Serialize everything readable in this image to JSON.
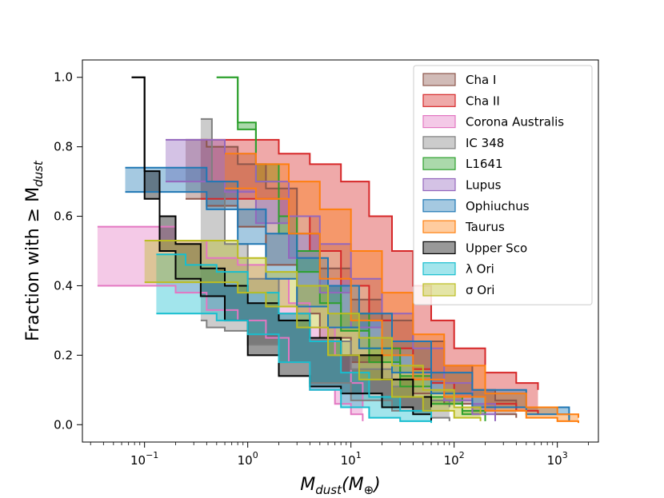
{
  "chart_data": {
    "type": "area",
    "title": "",
    "xlabel_main": "M",
    "xlabel_sub": "dust",
    "xlabel_paren": "(M",
    "xlabel_paren_sub": "⊕",
    "xlabel_close": ")",
    "ylabel_text": "Fraction with  ≥ M",
    "ylabel_sub": "dust",
    "xscale": "log",
    "xlim": [
      0.025,
      2500
    ],
    "ylim": [
      -0.05,
      1.05
    ],
    "xticks": [
      {
        "value": 0.1,
        "base": "10",
        "exp": "−1"
      },
      {
        "value": 1,
        "base": "10",
        "exp": "0"
      },
      {
        "value": 10,
        "base": "10",
        "exp": "1"
      },
      {
        "value": 100,
        "base": "10",
        "exp": "2"
      },
      {
        "value": 1000,
        "base": "10",
        "exp": "3"
      }
    ],
    "yticks": [
      "0.0",
      "0.2",
      "0.4",
      "0.6",
      "0.8",
      "1.0"
    ],
    "ytick_values": [
      0.0,
      0.2,
      0.4,
      0.6,
      0.8,
      1.0
    ],
    "legend_position": "upper right",
    "series": [
      {
        "name": "Cha I",
        "color": "#8c564b",
        "upper": [
          [
            0.25,
            0.82
          ],
          [
            0.4,
            0.8
          ],
          [
            0.8,
            0.75
          ],
          [
            1.5,
            0.68
          ],
          [
            3,
            0.55
          ],
          [
            5,
            0.45
          ],
          [
            10,
            0.36
          ],
          [
            20,
            0.3
          ],
          [
            40,
            0.24
          ],
          [
            80,
            0.17
          ],
          [
            150,
            0.1
          ],
          [
            250,
            0.07
          ],
          [
            400,
            0.04
          ]
        ],
        "lower": [
          [
            0.25,
            0.65
          ],
          [
            0.4,
            0.63
          ],
          [
            0.8,
            0.57
          ],
          [
            1.5,
            0.46
          ],
          [
            3,
            0.32
          ],
          [
            5,
            0.25
          ],
          [
            10,
            0.18
          ],
          [
            20,
            0.13
          ],
          [
            40,
            0.09
          ],
          [
            80,
            0.06
          ],
          [
            150,
            0.04
          ],
          [
            250,
            0.03
          ],
          [
            400,
            0.02
          ]
        ]
      },
      {
        "name": "Cha II",
        "color": "#d62728",
        "upper": [
          [
            0.35,
            0.82
          ],
          [
            1.0,
            0.82
          ],
          [
            2,
            0.78
          ],
          [
            4,
            0.75
          ],
          [
            8,
            0.7
          ],
          [
            15,
            0.6
          ],
          [
            25,
            0.5
          ],
          [
            40,
            0.4
          ],
          [
            60,
            0.3
          ],
          [
            100,
            0.22
          ],
          [
            200,
            0.15
          ],
          [
            400,
            0.12
          ],
          [
            650,
            0.1
          ]
        ],
        "lower": [
          [
            0.35,
            0.65
          ],
          [
            1.0,
            0.65
          ],
          [
            2,
            0.6
          ],
          [
            4,
            0.5
          ],
          [
            8,
            0.4
          ],
          [
            15,
            0.3
          ],
          [
            25,
            0.22
          ],
          [
            40,
            0.16
          ],
          [
            60,
            0.12
          ],
          [
            100,
            0.08
          ],
          [
            200,
            0.06
          ],
          [
            400,
            0.04
          ],
          [
            650,
            0.03
          ]
        ]
      },
      {
        "name": "Corona Australis",
        "color": "#e377c2",
        "upper": [
          [
            0.035,
            0.57
          ],
          [
            0.12,
            0.57
          ],
          [
            0.2,
            0.53
          ],
          [
            0.4,
            0.48
          ],
          [
            0.8,
            0.46
          ],
          [
            1.5,
            0.42
          ],
          [
            2.5,
            0.35
          ],
          [
            4,
            0.28
          ],
          [
            7,
            0.2
          ],
          [
            10,
            0.12
          ],
          [
            13,
            0.05
          ]
        ],
        "lower": [
          [
            0.035,
            0.4
          ],
          [
            0.12,
            0.4
          ],
          [
            0.2,
            0.38
          ],
          [
            0.4,
            0.33
          ],
          [
            0.8,
            0.3
          ],
          [
            1.5,
            0.25
          ],
          [
            2.5,
            0.18
          ],
          [
            4,
            0.1
          ],
          [
            7,
            0.06
          ],
          [
            10,
            0.03
          ],
          [
            13,
            0.01
          ]
        ]
      },
      {
        "name": "IC 348",
        "color": "#7f7f7f",
        "upper": [
          [
            0.35,
            0.88
          ],
          [
            0.4,
            0.88
          ],
          [
            0.45,
            0.7
          ],
          [
            0.6,
            0.52
          ],
          [
            1,
            0.42
          ],
          [
            2,
            0.32
          ],
          [
            4,
            0.24
          ],
          [
            10,
            0.16
          ],
          [
            25,
            0.11
          ],
          [
            60,
            0.07
          ],
          [
            90,
            0.05
          ]
        ],
        "lower": [
          [
            0.35,
            0.3
          ],
          [
            0.4,
            0.28
          ],
          [
            0.45,
            0.28
          ],
          [
            0.6,
            0.27
          ],
          [
            1,
            0.23
          ],
          [
            2,
            0.18
          ],
          [
            4,
            0.12
          ],
          [
            10,
            0.07
          ],
          [
            25,
            0.04
          ],
          [
            60,
            0.02
          ],
          [
            90,
            0.01
          ]
        ]
      },
      {
        "name": "L1641",
        "color": "#2ca02c",
        "upper": [
          [
            0.5,
            1.0
          ],
          [
            0.8,
            0.87
          ],
          [
            1.2,
            0.75
          ],
          [
            2,
            0.6
          ],
          [
            3,
            0.5
          ],
          [
            5,
            0.4
          ],
          [
            8,
            0.32
          ],
          [
            15,
            0.22
          ],
          [
            30,
            0.14
          ],
          [
            60,
            0.08
          ],
          [
            120,
            0.04
          ],
          [
            200,
            0.02
          ]
        ],
        "lower": [
          [
            0.5,
            1.0
          ],
          [
            0.8,
            0.85
          ],
          [
            1.2,
            0.7
          ],
          [
            2,
            0.55
          ],
          [
            3,
            0.44
          ],
          [
            5,
            0.35
          ],
          [
            8,
            0.27
          ],
          [
            15,
            0.18
          ],
          [
            30,
            0.11
          ],
          [
            60,
            0.06
          ],
          [
            120,
            0.03
          ],
          [
            200,
            0.01
          ]
        ]
      },
      {
        "name": "Lupus",
        "color": "#9467bd",
        "upper": [
          [
            0.16,
            0.82
          ],
          [
            0.3,
            0.82
          ],
          [
            0.6,
            0.78
          ],
          [
            1.2,
            0.7
          ],
          [
            2.5,
            0.6
          ],
          [
            5,
            0.52
          ],
          [
            10,
            0.42
          ],
          [
            20,
            0.32
          ],
          [
            40,
            0.22
          ],
          [
            80,
            0.12
          ],
          [
            150,
            0.06
          ],
          [
            250,
            0.02
          ]
        ],
        "lower": [
          [
            0.16,
            0.7
          ],
          [
            0.3,
            0.7
          ],
          [
            0.6,
            0.67
          ],
          [
            1.2,
            0.58
          ],
          [
            2.5,
            0.48
          ],
          [
            5,
            0.38
          ],
          [
            10,
            0.28
          ],
          [
            20,
            0.2
          ],
          [
            40,
            0.13
          ],
          [
            80,
            0.07
          ],
          [
            150,
            0.03
          ],
          [
            250,
            0.01
          ]
        ]
      },
      {
        "name": "Ophiuchus",
        "color": "#1f77b4",
        "upper": [
          [
            0.065,
            0.74
          ],
          [
            0.2,
            0.74
          ],
          [
            0.4,
            0.7
          ],
          [
            0.8,
            0.62
          ],
          [
            1.5,
            0.55
          ],
          [
            3,
            0.48
          ],
          [
            6,
            0.4
          ],
          [
            12,
            0.32
          ],
          [
            25,
            0.24
          ],
          [
            60,
            0.15
          ],
          [
            150,
            0.1
          ],
          [
            500,
            0.05
          ],
          [
            1300,
            0.02
          ]
        ],
        "lower": [
          [
            0.065,
            0.67
          ],
          [
            0.2,
            0.67
          ],
          [
            0.4,
            0.62
          ],
          [
            0.8,
            0.52
          ],
          [
            1.5,
            0.42
          ],
          [
            3,
            0.34
          ],
          [
            6,
            0.28
          ],
          [
            12,
            0.22
          ],
          [
            25,
            0.15
          ],
          [
            60,
            0.09
          ],
          [
            150,
            0.05
          ],
          [
            500,
            0.03
          ],
          [
            1300,
            0.01
          ]
        ]
      },
      {
        "name": "Taurus",
        "color": "#ff7f0e",
        "upper": [
          [
            0.6,
            0.78
          ],
          [
            1.2,
            0.75
          ],
          [
            2.5,
            0.7
          ],
          [
            5,
            0.62
          ],
          [
            10,
            0.5
          ],
          [
            20,
            0.38
          ],
          [
            40,
            0.26
          ],
          [
            80,
            0.17
          ],
          [
            200,
            0.09
          ],
          [
            500,
            0.05
          ],
          [
            1000,
            0.03
          ],
          [
            1600,
            0.02
          ]
        ],
        "lower": [
          [
            0.6,
            0.68
          ],
          [
            1.2,
            0.65
          ],
          [
            2.5,
            0.55
          ],
          [
            5,
            0.42
          ],
          [
            10,
            0.3
          ],
          [
            20,
            0.2
          ],
          [
            40,
            0.13
          ],
          [
            80,
            0.08
          ],
          [
            200,
            0.04
          ],
          [
            500,
            0.02
          ],
          [
            1000,
            0.01
          ],
          [
            1600,
            0.005
          ]
        ]
      },
      {
        "name": "Upper Sco",
        "color": "#000000",
        "upper": [
          [
            0.075,
            1.0
          ],
          [
            0.1,
            0.73
          ],
          [
            0.14,
            0.6
          ],
          [
            0.2,
            0.52
          ],
          [
            0.35,
            0.45
          ],
          [
            0.6,
            0.4
          ],
          [
            1,
            0.35
          ],
          [
            2,
            0.3
          ],
          [
            4,
            0.25
          ],
          [
            8,
            0.2
          ],
          [
            20,
            0.13
          ],
          [
            40,
            0.08
          ],
          [
            60,
            0.05
          ]
        ],
        "lower": [
          [
            0.075,
            1.0
          ],
          [
            0.1,
            0.65
          ],
          [
            0.14,
            0.5
          ],
          [
            0.2,
            0.42
          ],
          [
            0.35,
            0.37
          ],
          [
            0.6,
            0.3
          ],
          [
            1,
            0.2
          ],
          [
            2,
            0.14
          ],
          [
            4,
            0.11
          ],
          [
            8,
            0.09
          ],
          [
            20,
            0.05
          ],
          [
            40,
            0.03
          ],
          [
            60,
            0.01
          ]
        ]
      },
      {
        "name": "λ Ori",
        "color": "#17becf",
        "upper": [
          [
            0.13,
            0.49
          ],
          [
            0.25,
            0.46
          ],
          [
            0.5,
            0.44
          ],
          [
            1,
            0.38
          ],
          [
            2,
            0.32
          ],
          [
            4,
            0.24
          ],
          [
            8,
            0.15
          ],
          [
            15,
            0.08
          ],
          [
            30,
            0.04
          ],
          [
            60,
            0.02
          ]
        ],
        "lower": [
          [
            0.13,
            0.32
          ],
          [
            0.25,
            0.32
          ],
          [
            0.5,
            0.3
          ],
          [
            1,
            0.26
          ],
          [
            2,
            0.18
          ],
          [
            4,
            0.1
          ],
          [
            8,
            0.05
          ],
          [
            15,
            0.02
          ],
          [
            30,
            0.01
          ],
          [
            60,
            0.005
          ]
        ]
      },
      {
        "name": "σ Ori",
        "color": "#bcbd22",
        "upper": [
          [
            0.1,
            0.53
          ],
          [
            0.3,
            0.53
          ],
          [
            0.8,
            0.48
          ],
          [
            1.5,
            0.44
          ],
          [
            3,
            0.4
          ],
          [
            6,
            0.32
          ],
          [
            12,
            0.25
          ],
          [
            25,
            0.17
          ],
          [
            50,
            0.1
          ],
          [
            100,
            0.05
          ],
          [
            180,
            0.03
          ]
        ],
        "lower": [
          [
            0.1,
            0.41
          ],
          [
            0.3,
            0.41
          ],
          [
            0.8,
            0.38
          ],
          [
            1.5,
            0.34
          ],
          [
            3,
            0.28
          ],
          [
            6,
            0.2
          ],
          [
            12,
            0.13
          ],
          [
            25,
            0.08
          ],
          [
            50,
            0.04
          ],
          [
            100,
            0.02
          ],
          [
            180,
            0.01
          ]
        ]
      }
    ]
  }
}
